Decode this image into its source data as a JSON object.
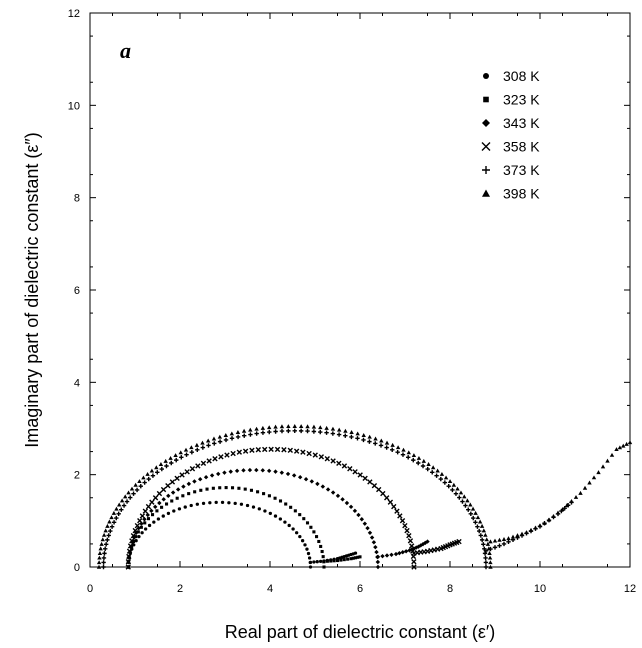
{
  "chart_data": {
    "type": "scatter",
    "panel_label": "a",
    "xlabel": "Real part of dielectric constant (ε′)",
    "ylabel": "Imaginary part of dielectric constant (ε″)",
    "xlim": [
      0,
      12
    ],
    "ylim": [
      0,
      12
    ],
    "xticks": [
      "0",
      "2",
      "4",
      "6",
      "8",
      "10",
      "12"
    ],
    "yticks": [
      "0",
      "2",
      "4",
      "6",
      "8",
      "10",
      "12"
    ],
    "legend_position": "upper-right",
    "series": [
      {
        "name": "308 K",
        "marker": "circle",
        "arc": {
          "x0": 0.85,
          "x1": 4.9,
          "peak": 1.4
        },
        "tail": [
          [
            4.9,
            0.1
          ],
          [
            5.2,
            0.13
          ],
          [
            5.5,
            0.18
          ],
          [
            5.7,
            0.24
          ],
          [
            5.9,
            0.3
          ]
        ]
      },
      {
        "name": "323 K",
        "marker": "square",
        "arc": {
          "x0": 0.85,
          "x1": 5.2,
          "peak": 1.72
        },
        "tail": [
          [
            5.2,
            0.12
          ],
          [
            5.5,
            0.14
          ],
          [
            5.8,
            0.18
          ],
          [
            6.0,
            0.22
          ]
        ]
      },
      {
        "name": "343 K",
        "marker": "diamond",
        "arc": {
          "x0": 0.85,
          "x1": 6.4,
          "peak": 2.1
        },
        "tail": [
          [
            6.4,
            0.22
          ],
          [
            6.8,
            0.28
          ],
          [
            7.1,
            0.36
          ],
          [
            7.3,
            0.44
          ],
          [
            7.5,
            0.55
          ]
        ]
      },
      {
        "name": "358 K",
        "marker": "x",
        "arc": {
          "x0": 0.85,
          "x1": 7.2,
          "peak": 2.55
        },
        "tail": [
          [
            7.2,
            0.3
          ],
          [
            7.5,
            0.34
          ],
          [
            7.8,
            0.4
          ],
          [
            8.0,
            0.48
          ],
          [
            8.2,
            0.55
          ]
        ]
      },
      {
        "name": "373 K",
        "marker": "plus",
        "arc": {
          "x0": 0.3,
          "x1": 8.8,
          "peak": 2.95
        },
        "tail": [
          [
            8.8,
            0.35
          ],
          [
            9.2,
            0.5
          ],
          [
            9.6,
            0.68
          ],
          [
            10.0,
            0.88
          ],
          [
            10.4,
            1.15
          ],
          [
            10.7,
            1.4
          ]
        ]
      },
      {
        "name": "398 K",
        "marker": "triangle",
        "arc": {
          "x0": 0.2,
          "x1": 8.9,
          "peak": 3.05
        },
        "tail": [
          [
            8.9,
            0.55
          ],
          [
            9.3,
            0.62
          ],
          [
            9.7,
            0.75
          ],
          [
            10.1,
            0.95
          ],
          [
            10.5,
            1.25
          ],
          [
            10.9,
            1.6
          ],
          [
            11.3,
            2.05
          ],
          [
            11.7,
            2.55
          ],
          [
            12.0,
            2.7
          ]
        ]
      }
    ]
  }
}
